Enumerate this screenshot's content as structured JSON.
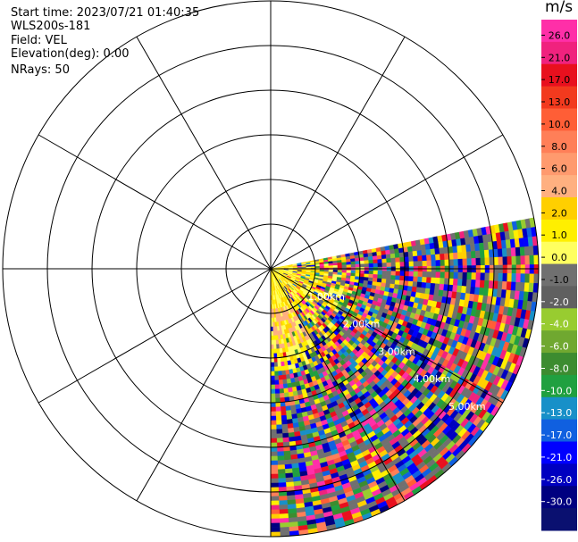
{
  "info": {
    "start_time": "Start time: 2023/07/21 01:40:35",
    "instrument": "WLS200s-181",
    "field": "Field: VEL",
    "elevation": "Elevation(deg): 0.00",
    "nrays": "NRays: 50"
  },
  "colorbar": {
    "unit": "m/s",
    "ticks": [
      "26.0",
      "21.0",
      "17.0",
      "13.0",
      "10.0",
      "8.0",
      "6.0",
      "4.0",
      "2.0",
      "1.0",
      "0.0",
      "-1.0",
      "-2.0",
      "-4.0",
      "-6.0",
      "-8.0",
      "-10.0",
      "-13.0",
      "-17.0",
      "-21.0",
      "-26.0",
      "-30.0"
    ],
    "colors": [
      "#ff2fa8",
      "#f0227e",
      "#e8101e",
      "#f23a1e",
      "#ff5e36",
      "#ff7f58",
      "#ff9a6e",
      "#ffb080",
      "#ffcf00",
      "#ffef00",
      "#ffff60",
      "#707070",
      "#606060",
      "#98cc30",
      "#70a830",
      "#3c8c30",
      "#20a040",
      "#1890c8",
      "#1060e0",
      "#0000ff",
      "#0000c0",
      "#000080",
      "#0a1070"
    ]
  },
  "chart_data": {
    "type": "heatmap",
    "projection": "polar (PPI)",
    "range_unit": "km",
    "range_labels": [
      "1.00km",
      "2.00km",
      "3.00km",
      "4.00km",
      "5.00km"
    ],
    "range_rings_km": [
      1,
      2,
      3,
      4,
      5,
      6
    ],
    "radial_spokes_deg": [
      0,
      30,
      60,
      90,
      120,
      150,
      180,
      210,
      240,
      270,
      300,
      330
    ],
    "sector_azimuth_deg": [
      79,
      180
    ],
    "nrays": 50,
    "colorscale_range": [
      -30,
      26
    ],
    "description_of_field": "VEL"
  }
}
